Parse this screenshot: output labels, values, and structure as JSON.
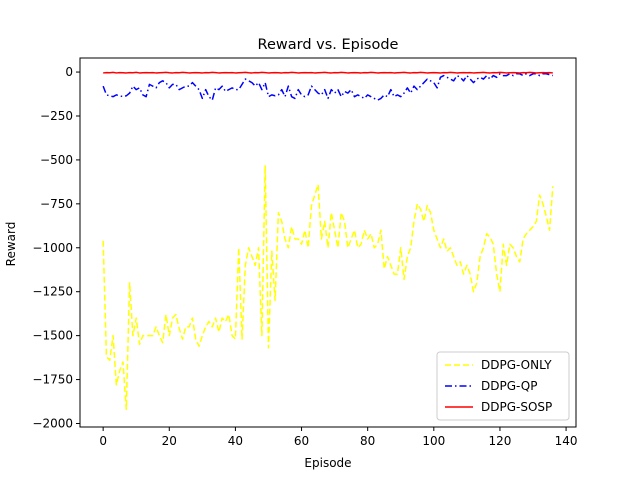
{
  "chart_data": {
    "type": "line",
    "title": "Reward vs. Episode",
    "xlabel": "Episode",
    "ylabel": "Reward",
    "xlim": [
      -7,
      143
    ],
    "ylim": [
      -2020,
      80
    ],
    "xticks": [
      0,
      20,
      40,
      60,
      80,
      100,
      120,
      140
    ],
    "yticks": [
      0,
      -250,
      -500,
      -750,
      -1000,
      -1250,
      -1500,
      -1750,
      -2000
    ],
    "ytick_labels": [
      "0",
      "−250",
      "−500",
      "−750",
      "−1000",
      "−1250",
      "−1500",
      "−1750",
      "−2000"
    ],
    "grid": false,
    "legend_position": "lower-right",
    "x": [
      0,
      1,
      2,
      3,
      4,
      5,
      6,
      7,
      8,
      9,
      10,
      11,
      12,
      13,
      14,
      15,
      16,
      17,
      18,
      19,
      20,
      21,
      22,
      23,
      24,
      25,
      26,
      27,
      28,
      29,
      30,
      31,
      32,
      33,
      34,
      35,
      36,
      37,
      38,
      39,
      40,
      41,
      42,
      43,
      44,
      45,
      46,
      47,
      48,
      49,
      50,
      51,
      52,
      53,
      54,
      55,
      56,
      57,
      58,
      59,
      60,
      61,
      62,
      63,
      64,
      65,
      66,
      67,
      68,
      69,
      70,
      71,
      72,
      73,
      74,
      75,
      76,
      77,
      78,
      79,
      80,
      81,
      82,
      83,
      84,
      85,
      86,
      87,
      88,
      89,
      90,
      91,
      92,
      93,
      94,
      95,
      96,
      97,
      98,
      99,
      100,
      101,
      102,
      103,
      104,
      105,
      106,
      107,
      108,
      109,
      110,
      111,
      112,
      113,
      114,
      115,
      116,
      117,
      118,
      119,
      120,
      121,
      122,
      123,
      124,
      125,
      126,
      127,
      128,
      129,
      130,
      131,
      132,
      133,
      134,
      135,
      136
    ],
    "series": [
      {
        "name": "DDPG-ONLY",
        "color": "#ffff00",
        "style": "dashed",
        "values": [
          -960,
          -1620,
          -1640,
          -1500,
          -1780,
          -1700,
          -1650,
          -1920,
          -1200,
          -1500,
          -1400,
          -1550,
          -1500,
          -1500,
          -1500,
          -1500,
          -1450,
          -1500,
          -1540,
          -1380,
          -1500,
          -1400,
          -1380,
          -1460,
          -1520,
          -1450,
          -1450,
          -1400,
          -1520,
          -1560,
          -1500,
          -1450,
          -1420,
          -1450,
          -1400,
          -1480,
          -1400,
          -1420,
          -1380,
          -1500,
          -1520,
          -1000,
          -1520,
          -1100,
          -1000,
          -1050,
          -1100,
          -1000,
          -1500,
          -530,
          -1570,
          -1020,
          -1300,
          -800,
          -850,
          -950,
          -1000,
          -880,
          -950,
          -950,
          -980,
          -900,
          -1000,
          -760,
          -700,
          -640,
          -950,
          -850,
          -1000,
          -800,
          -900,
          -1000,
          -800,
          -850,
          -1000,
          -950,
          -900,
          -1000,
          -980,
          -900,
          -950,
          -920,
          -1000,
          -980,
          -900,
          -1120,
          -1050,
          -1100,
          -1150,
          -1150,
          -1000,
          -1180,
          -1050,
          -1000,
          -850,
          -750,
          -780,
          -850,
          -760,
          -800,
          -900,
          -950,
          -1000,
          -950,
          -1020,
          -1000,
          -1050,
          -1100,
          -1080,
          -1150,
          -1100,
          -1150,
          -1250,
          -1200,
          -1050,
          -1000,
          -920,
          -940,
          -980,
          -1150,
          -1250,
          -980,
          -1100,
          -980,
          -1000,
          -1050,
          -1080,
          -950,
          -920,
          -900,
          -880,
          -850,
          -700,
          -750,
          -820,
          -900,
          -650
        ]
      },
      {
        "name": "DDPG-QP",
        "color": "#0000ff",
        "style": "dashdot",
        "values": [
          -80,
          -130,
          -135,
          -140,
          -130,
          -135,
          -140,
          -135,
          -120,
          -80,
          -100,
          -90,
          -130,
          -140,
          -70,
          -80,
          -90,
          -60,
          -50,
          -60,
          -90,
          -70,
          -70,
          -100,
          -90,
          -80,
          -80,
          -60,
          -80,
          -100,
          -150,
          -100,
          -140,
          -160,
          -90,
          -100,
          -80,
          -110,
          -100,
          -90,
          -100,
          -100,
          -70,
          -40,
          -50,
          -60,
          -80,
          -60,
          -100,
          -60,
          -140,
          -130,
          -135,
          -130,
          -100,
          -140,
          -80,
          -140,
          -150,
          -100,
          -130,
          -140,
          -130,
          -80,
          -100,
          -120,
          -130,
          -100,
          -150,
          -100,
          -120,
          -100,
          -140,
          -110,
          -120,
          -100,
          -140,
          -130,
          -140,
          -150,
          -130,
          -140,
          -150,
          -160,
          -150,
          -130,
          -140,
          -100,
          -140,
          -130,
          -140,
          -120,
          -90,
          -120,
          -80,
          -100,
          -80,
          -60,
          -40,
          -50,
          -60,
          -90,
          -30,
          -20,
          -30,
          -40,
          -50,
          -20,
          -30,
          -50,
          -20,
          -40,
          -60,
          -40,
          -30,
          -40,
          -20,
          -40,
          -20,
          -30,
          -10,
          -20,
          -20,
          -10,
          -20,
          -10,
          -10,
          -20,
          -10,
          -20,
          -10,
          -10,
          -20,
          -10,
          -10,
          -15,
          -20
        ]
      },
      {
        "name": "DDPG-SOSP",
        "color": "#ff0000",
        "style": "solid",
        "values": [
          -5,
          -3,
          -4,
          -2,
          -5,
          -3,
          -4,
          -5,
          -3,
          -4,
          -2,
          -5,
          -4,
          -3,
          -4,
          -3,
          -5,
          -4,
          -3,
          -2,
          -4,
          -5,
          -3,
          -4,
          -2,
          -3,
          -5,
          -4,
          -3,
          -4,
          -5,
          -3,
          -4,
          -2,
          -3,
          -5,
          -4,
          -3,
          -4,
          -3,
          -5,
          -4,
          -3,
          -2,
          -4,
          -5,
          -3,
          -4,
          -2,
          -3,
          -5,
          -4,
          -3,
          -4,
          -5,
          -3,
          -4,
          -2,
          -3,
          -5,
          -4,
          -3,
          -4,
          -3,
          -5,
          -4,
          -3,
          -2,
          -4,
          -5,
          -3,
          -4,
          -2,
          -3,
          -5,
          -4,
          -3,
          -4,
          -5,
          -3,
          -4,
          -2,
          -3,
          -5,
          -4,
          -3,
          -4,
          -3,
          -5,
          -4,
          -3,
          -2,
          -4,
          -5,
          -3,
          -4,
          -2,
          -3,
          -5,
          -4,
          -3,
          -4,
          -5,
          -3,
          -4,
          -2,
          -3,
          -5,
          -4,
          -3,
          -4,
          -3,
          -5,
          -4,
          -3,
          -2,
          -4,
          -5,
          -3,
          -4,
          -2,
          -3,
          -5,
          -4,
          -3,
          -4,
          -5,
          -3,
          -4,
          -2,
          -3,
          -5,
          -4,
          -3,
          -4,
          -3,
          -5
        ]
      }
    ]
  }
}
